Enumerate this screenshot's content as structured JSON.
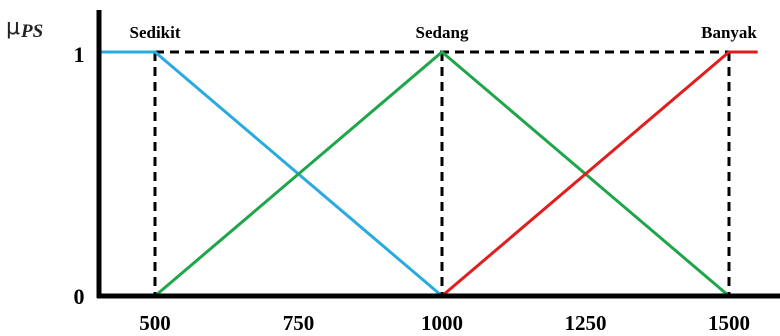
{
  "chart_data": {
    "type": "line",
    "y_symbol": "μ",
    "y_subscript": "PS",
    "y_ticks": [
      "1",
      "0"
    ],
    "x_ticks": [
      500,
      750,
      1000,
      1250,
      1500
    ],
    "x_range": [
      400,
      1550
    ],
    "y_range": [
      0,
      1
    ],
    "series": [
      {
        "name": "Sedikit",
        "color": "#29ABE2",
        "points": [
          [
            400,
            1
          ],
          [
            500,
            1
          ],
          [
            1000,
            0
          ]
        ]
      },
      {
        "name": "Sedang",
        "color": "#1FA64A",
        "points": [
          [
            500,
            0
          ],
          [
            1000,
            1
          ],
          [
            1500,
            0
          ]
        ]
      },
      {
        "name": "Banyak",
        "color": "#E01E1E",
        "points": [
          [
            1000,
            0
          ],
          [
            1500,
            1
          ],
          [
            1550,
            1
          ]
        ]
      }
    ],
    "guides": {
      "dashed_top_from": 500,
      "dashed_top_to": 1500,
      "dashed_vertical_at": [
        500,
        1000,
        1500
      ]
    }
  }
}
